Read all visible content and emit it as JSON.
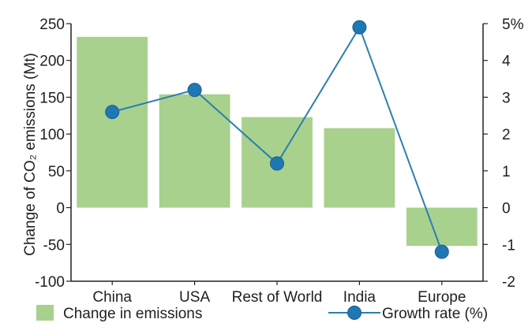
{
  "chart_data": {
    "type": "bar",
    "title": "",
    "categories": [
      "China",
      "USA",
      "Rest of World",
      "India",
      "Europe"
    ],
    "series": [
      {
        "name": "Change in emissions",
        "type": "bar",
        "axis": "left",
        "color": "#a8d18d",
        "values": [
          232,
          154,
          123,
          108,
          -52
        ]
      },
      {
        "name": "Growth rate (%)",
        "type": "line",
        "axis": "right",
        "color": "#2b7fb0",
        "marker_color": "#1f77b4",
        "values": [
          2.6,
          3.2,
          1.2,
          4.9,
          -1.2
        ]
      }
    ],
    "ylabel_left": "Change of CO₂ emissions (Mt)",
    "ylabel_right": "",
    "ylim_left": [
      -100,
      250
    ],
    "ylim_right": [
      -2,
      5
    ],
    "yticks_left": [
      "250",
      "200",
      "150",
      "100",
      "50",
      "0",
      "-50",
      "-100"
    ],
    "yticks_right": [
      "5%",
      "4",
      "3",
      "2",
      "1",
      "0",
      "-1",
      "-2"
    ],
    "grid": false,
    "legend_placement": "bottom"
  }
}
